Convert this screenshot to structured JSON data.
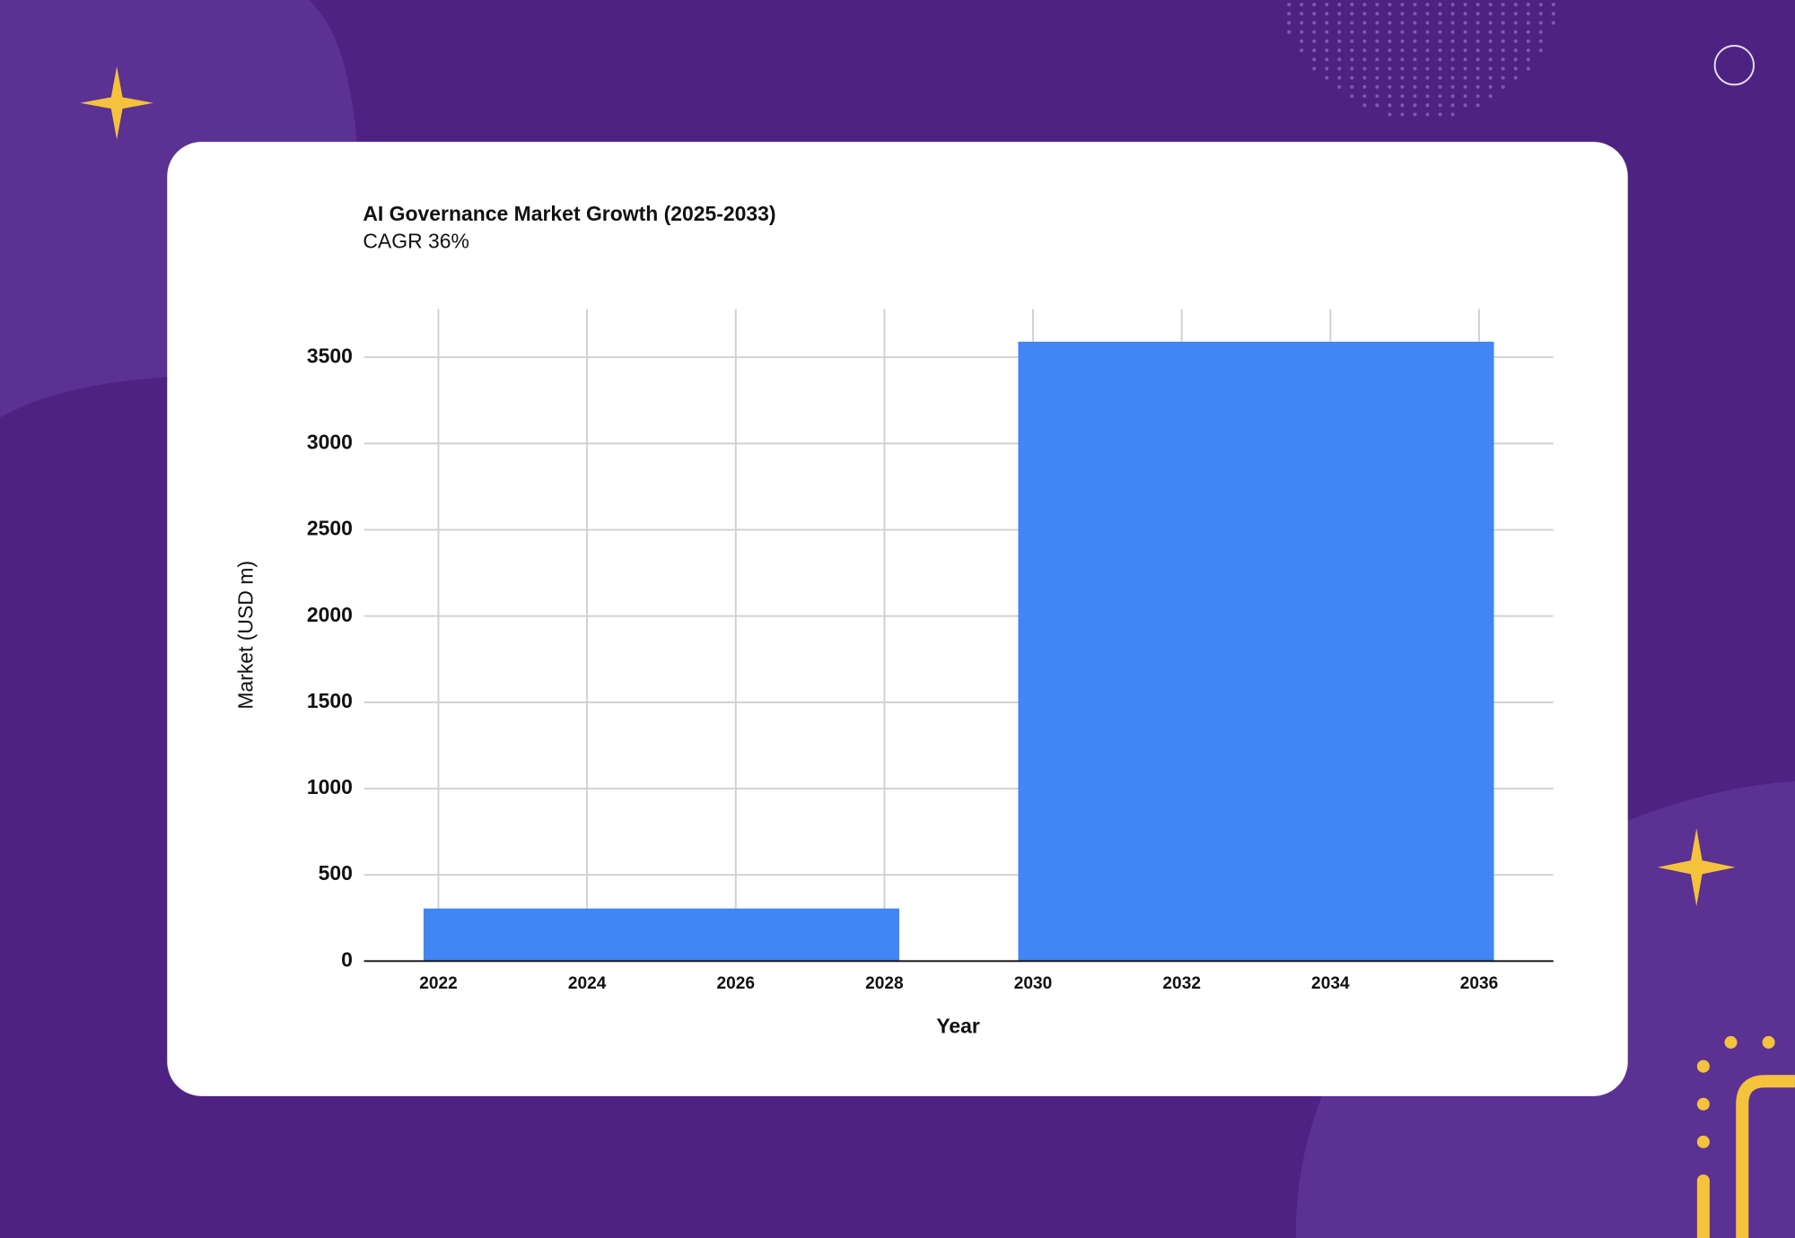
{
  "chart_data": {
    "type": "bar",
    "title": "AI Governance Market Growth (2025-2033)",
    "subtitle": "CAGR 36%",
    "x_label": "Year",
    "y_label": "Market (USD m)",
    "x": [
      2025,
      2033
    ],
    "values": [
      305,
      3590
    ],
    "color": "#4285f4",
    "xlim": [
      2021,
      2037
    ],
    "xticks": [
      2022,
      2024,
      2026,
      2028,
      2030,
      2032,
      2034,
      2036
    ],
    "ylim": [
      0,
      3780
    ],
    "yticks": [
      0,
      500,
      1000,
      1500,
      2000,
      2500,
      3000,
      3500
    ],
    "grid": true
  }
}
